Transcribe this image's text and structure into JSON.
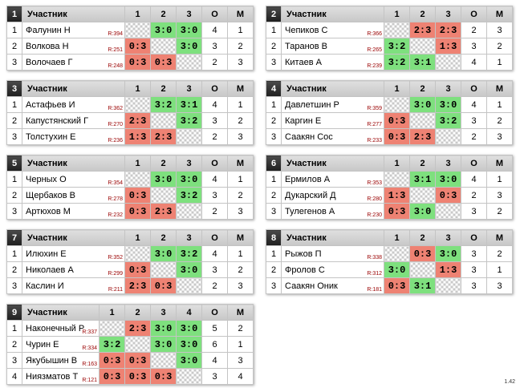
{
  "groups": [
    {
      "id": "1",
      "participant_header": "Участник",
      "column_headers": [
        "1",
        "2",
        "3"
      ],
      "points_header": "О",
      "place_header": "М",
      "players": [
        {
          "idx": "1",
          "name": "Фалунин Н",
          "rating": "R:394",
          "results": [
            "",
            "3:0",
            "3:0"
          ],
          "points": "4",
          "place": "1"
        },
        {
          "idx": "2",
          "name": "Волкова Н",
          "rating": "R:251",
          "results": [
            "0:3",
            "",
            "3:0"
          ],
          "points": "3",
          "place": "2"
        },
        {
          "idx": "3",
          "name": "Волочаев Г",
          "rating": "R:248",
          "results": [
            "0:3",
            "0:3",
            ""
          ],
          "points": "2",
          "place": "3"
        }
      ]
    },
    {
      "id": "2",
      "participant_header": "Участник",
      "column_headers": [
        "1",
        "2",
        "3"
      ],
      "points_header": "О",
      "place_header": "М",
      "players": [
        {
          "idx": "1",
          "name": "Чепиков С",
          "rating": "R:366",
          "results": [
            "",
            "2:3",
            "2:3"
          ],
          "points": "2",
          "place": "3"
        },
        {
          "idx": "2",
          "name": "Таранов В",
          "rating": "R:265",
          "results": [
            "3:2",
            "",
            "1:3"
          ],
          "points": "3",
          "place": "2"
        },
        {
          "idx": "3",
          "name": "Китаев А",
          "rating": "R:239",
          "results": [
            "3:2",
            "3:1",
            ""
          ],
          "points": "4",
          "place": "1"
        }
      ]
    },
    {
      "id": "3",
      "participant_header": "Участник",
      "column_headers": [
        "1",
        "2",
        "3"
      ],
      "points_header": "О",
      "place_header": "М",
      "players": [
        {
          "idx": "1",
          "name": "Астафьев И",
          "rating": "R:362",
          "results": [
            "",
            "3:2",
            "3:1"
          ],
          "points": "4",
          "place": "1"
        },
        {
          "idx": "2",
          "name": "Капустянский Г",
          "rating": "R:270",
          "results": [
            "2:3",
            "",
            "3:2"
          ],
          "points": "3",
          "place": "2"
        },
        {
          "idx": "3",
          "name": "Толстухин Е",
          "rating": "R:236",
          "results": [
            "1:3",
            "2:3",
            ""
          ],
          "points": "2",
          "place": "3"
        }
      ]
    },
    {
      "id": "4",
      "participant_header": "Участник",
      "column_headers": [
        "1",
        "2",
        "3"
      ],
      "points_header": "О",
      "place_header": "М",
      "players": [
        {
          "idx": "1",
          "name": "Давлетшин Р",
          "rating": "R:359",
          "results": [
            "",
            "3:0",
            "3:0"
          ],
          "points": "4",
          "place": "1"
        },
        {
          "idx": "2",
          "name": "Каргин Е",
          "rating": "R:277",
          "results": [
            "0:3",
            "",
            "3:2"
          ],
          "points": "3",
          "place": "2"
        },
        {
          "idx": "3",
          "name": "Саакян Сос",
          "rating": "R:233",
          "results": [
            "0:3",
            "2:3",
            ""
          ],
          "points": "2",
          "place": "3"
        }
      ]
    },
    {
      "id": "5",
      "participant_header": "Участник",
      "column_headers": [
        "1",
        "2",
        "3"
      ],
      "points_header": "О",
      "place_header": "М",
      "players": [
        {
          "idx": "1",
          "name": "Черных О",
          "rating": "R:354",
          "results": [
            "",
            "3:0",
            "3:0"
          ],
          "points": "4",
          "place": "1"
        },
        {
          "idx": "2",
          "name": "Щербаков В",
          "rating": "R:278",
          "results": [
            "0:3",
            "",
            "3:2"
          ],
          "points": "3",
          "place": "2"
        },
        {
          "idx": "3",
          "name": "Артюхов М",
          "rating": "R:232",
          "results": [
            "0:3",
            "2:3",
            ""
          ],
          "points": "2",
          "place": "3"
        }
      ]
    },
    {
      "id": "6",
      "participant_header": "Участник",
      "column_headers": [
        "1",
        "2",
        "3"
      ],
      "points_header": "О",
      "place_header": "М",
      "players": [
        {
          "idx": "1",
          "name": "Ермилов А",
          "rating": "R:353",
          "results": [
            "",
            "3:1",
            "3:0"
          ],
          "points": "4",
          "place": "1"
        },
        {
          "idx": "2",
          "name": "Дукарский Д",
          "rating": "R:280",
          "results": [
            "1:3",
            "",
            "0:3"
          ],
          "points": "2",
          "place": "3"
        },
        {
          "idx": "3",
          "name": "Тулегенов А",
          "rating": "R:230",
          "results": [
            "0:3",
            "3:0",
            ""
          ],
          "points": "3",
          "place": "2"
        }
      ]
    },
    {
      "id": "7",
      "participant_header": "Участник",
      "column_headers": [
        "1",
        "2",
        "3"
      ],
      "points_header": "О",
      "place_header": "М",
      "players": [
        {
          "idx": "1",
          "name": "Илюхин Е",
          "rating": "R:352",
          "results": [
            "",
            "3:0",
            "3:2"
          ],
          "points": "4",
          "place": "1"
        },
        {
          "idx": "2",
          "name": "Николаев А",
          "rating": "R:299",
          "results": [
            "0:3",
            "",
            "3:0"
          ],
          "points": "3",
          "place": "2"
        },
        {
          "idx": "3",
          "name": "Каслин И",
          "rating": "R:211",
          "results": [
            "2:3",
            "0:3",
            ""
          ],
          "points": "2",
          "place": "3"
        }
      ]
    },
    {
      "id": "8",
      "participant_header": "Участник",
      "column_headers": [
        "1",
        "2",
        "3"
      ],
      "points_header": "О",
      "place_header": "М",
      "players": [
        {
          "idx": "1",
          "name": "Рыжов П",
          "rating": "R:338",
          "results": [
            "",
            "0:3",
            "3:0"
          ],
          "points": "3",
          "place": "2"
        },
        {
          "idx": "2",
          "name": "Фролов С",
          "rating": "R:312",
          "results": [
            "3:0",
            "",
            "1:3"
          ],
          "points": "3",
          "place": "1"
        },
        {
          "idx": "3",
          "name": "Саакян Оник",
          "rating": "R:181",
          "results": [
            "0:3",
            "3:1",
            ""
          ],
          "points": "3",
          "place": "3"
        }
      ]
    },
    {
      "id": "9",
      "participant_header": "Участник",
      "column_headers": [
        "1",
        "2",
        "3",
        "4"
      ],
      "points_header": "О",
      "place_header": "М",
      "players": [
        {
          "idx": "1",
          "name": "Наконечный Р",
          "rating": "R:337",
          "results": [
            "",
            "2:3",
            "3:0",
            "3:0"
          ],
          "points": "5",
          "place": "2"
        },
        {
          "idx": "2",
          "name": "Чурин Е",
          "rating": "R:334",
          "results": [
            "3:2",
            "",
            "3:0",
            "3:0"
          ],
          "points": "6",
          "place": "1"
        },
        {
          "idx": "3",
          "name": "Якубышин В",
          "rating": "R:163",
          "results": [
            "0:3",
            "0:3",
            "",
            "3:0"
          ],
          "points": "4",
          "place": "3"
        },
        {
          "idx": "4",
          "name": "Ниязматов Т",
          "rating": "R:121",
          "results": [
            "0:3",
            "0:3",
            "0:3",
            ""
          ],
          "points": "3",
          "place": "4"
        }
      ]
    }
  ],
  "version": "1.42"
}
